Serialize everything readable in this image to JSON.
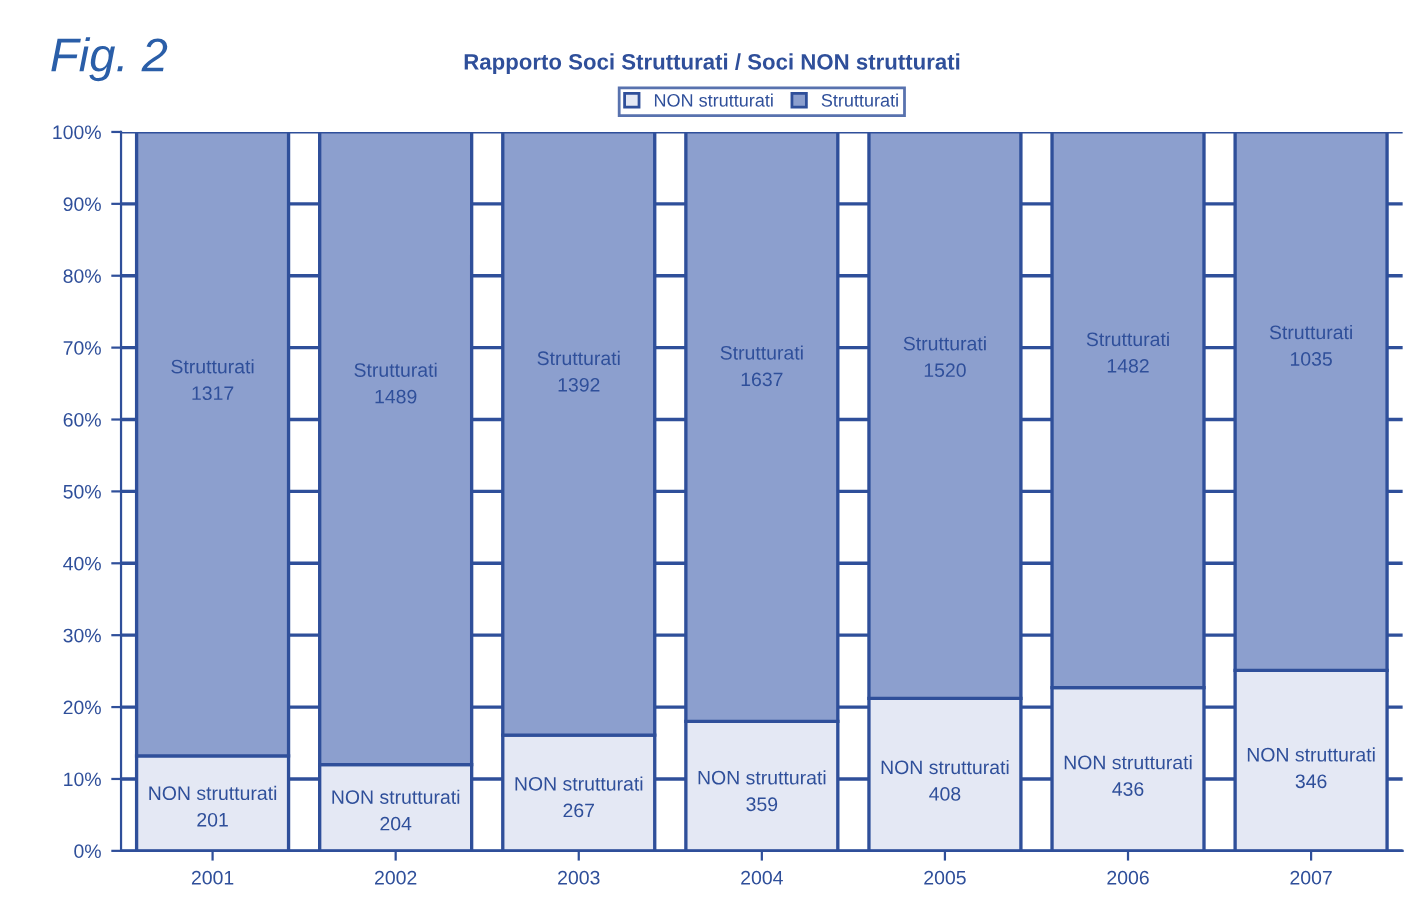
{
  "chart_data": {
    "type": "bar",
    "title": "Rapporto Soci Strutturati / Soci NON strutturati",
    "annotations": [
      "Fig. 2"
    ],
    "categories": [
      "2001",
      "2002",
      "2003",
      "2004",
      "2005",
      "2006",
      "2007"
    ],
    "stacked": true,
    "series": [
      {
        "name": "NON strutturati",
        "color": "#e4e8f4",
        "values": [
          13.2,
          12.0,
          16.1,
          18.0,
          21.2,
          22.7,
          25.1
        ],
        "value_labels": [
          "NON strutturati\n201",
          "NON strutturati\n204",
          "NON strutturati\n267",
          "NON strutturati\n359",
          "NON strutturati\n408",
          "NON strutturati\n436",
          "NON strutturati\n346"
        ]
      },
      {
        "name": "Strutturati",
        "color": "#8c9fce",
        "values": [
          86.8,
          88.0,
          83.9,
          82.0,
          78.8,
          77.3,
          74.9
        ],
        "value_labels": [
          "Strutturati\n1317",
          "Strutturati\n1489",
          "Strutturati\n1392",
          "Strutturati\n1637",
          "Strutturati\n1520",
          "Strutturati\n1482",
          "Strutturati\n1035"
        ]
      }
    ],
    "ylim": [
      0,
      100
    ],
    "yticks": [
      {
        "value": 0,
        "label": "0%"
      },
      {
        "value": 10,
        "label": "10%"
      },
      {
        "value": 20,
        "label": "20%"
      },
      {
        "value": 30,
        "label": "30%"
      },
      {
        "value": 40,
        "label": "40%"
      },
      {
        "value": 50,
        "label": "50%"
      },
      {
        "value": 60,
        "label": "60%"
      },
      {
        "value": 70,
        "label": "70%"
      },
      {
        "value": 80,
        "label": "80%"
      },
      {
        "value": 90,
        "label": "90%"
      },
      {
        "value": 100,
        "label": "100%"
      }
    ],
    "grid": "y",
    "legend": "top"
  }
}
